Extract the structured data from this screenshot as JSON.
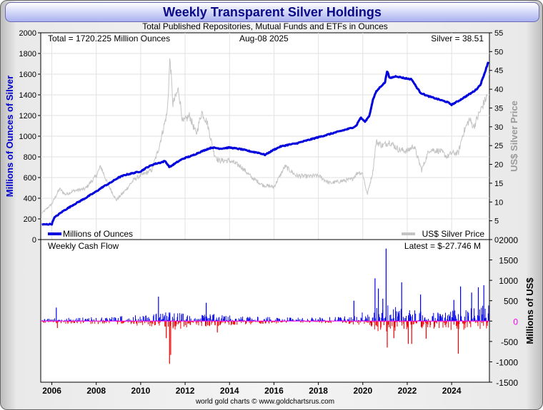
{
  "title": "Weekly Transparent Silver Holdings",
  "subtitle": "Total Published Repositories, Mutual Funds and ETFs in Ounces",
  "footer": "world gold charts © www.goldchartsrus.com",
  "colors": {
    "holdings": "#0000dd",
    "silver_price": "#c4c4c4",
    "inflow": "#0000ee",
    "outflow": "#ee0000",
    "zero_line": "#ff00ff",
    "grid": "#e2e2e2",
    "title_text": "#0a0a86",
    "left_axis_label": "#0000cc",
    "right_axis_label": "#9a9a9a"
  },
  "chart_data": [
    {
      "type": "line",
      "name": "holdings-panel",
      "info_total": "Total = 1720.225 Million Ounces",
      "info_date": "Aug-08  2025",
      "info_silver": "Silver = 38.51",
      "ylabel": "Millions of Ounces of Silver",
      "y2label": "US$ Silver Price",
      "ylim": [
        0,
        2000
      ],
      "y2lim": [
        0,
        55
      ],
      "xlim": [
        2005.5,
        2025.7
      ],
      "yticks": [
        "0",
        "200",
        "400",
        "600",
        "800",
        "1000",
        "1200",
        "1400",
        "1600",
        "1800",
        "2000"
      ],
      "y2ticks": [
        "0",
        "5",
        "10",
        "15",
        "20",
        "25",
        "30",
        "35",
        "40",
        "45",
        "50",
        "55"
      ],
      "legend_holdings": "Millions of Ounces",
      "legend_price": "US$ Silver Price",
      "series": [
        {
          "name": "Millions of Ounces",
          "axis": "left",
          "x": [
            2005.55,
            2006.0,
            2006.1,
            2006.5,
            2007.0,
            2007.5,
            2008.0,
            2008.3,
            2008.6,
            2009.0,
            2009.3,
            2009.6,
            2010.0,
            2010.3,
            2010.6,
            2010.9,
            2011.1,
            2011.3,
            2011.5,
            2011.8,
            2012.0,
            2012.3,
            2012.6,
            2013.0,
            2013.2,
            2013.6,
            2014.0,
            2014.5,
            2015.0,
            2015.3,
            2015.6,
            2016.0,
            2016.3,
            2016.6,
            2017.0,
            2017.5,
            2018.0,
            2018.5,
            2019.0,
            2019.5,
            2019.7,
            2019.9,
            2020.1,
            2020.3,
            2020.45,
            2020.6,
            2020.8,
            2021.0,
            2021.1,
            2021.2,
            2021.5,
            2021.9,
            2022.2,
            2022.4,
            2022.6,
            2022.9,
            2023.2,
            2023.5,
            2023.8,
            2024.0,
            2024.3,
            2024.6,
            2024.9,
            2025.1,
            2025.3,
            2025.5,
            2025.65
          ],
          "values": [
            145,
            150,
            210,
            275,
            340,
            400,
            465,
            510,
            545,
            600,
            625,
            640,
            660,
            700,
            730,
            745,
            760,
            700,
            730,
            770,
            790,
            810,
            840,
            875,
            890,
            880,
            890,
            875,
            850,
            840,
            820,
            870,
            900,
            915,
            930,
            960,
            990,
            1020,
            1050,
            1080,
            1100,
            1180,
            1140,
            1200,
            1350,
            1430,
            1480,
            1520,
            1640,
            1560,
            1580,
            1560,
            1550,
            1480,
            1420,
            1390,
            1370,
            1350,
            1330,
            1305,
            1340,
            1380,
            1420,
            1450,
            1500,
            1620,
            1720
          ]
        },
        {
          "name": "US$ Silver Price",
          "axis": "right",
          "x": [
            2005.55,
            2006.0,
            2006.35,
            2006.6,
            2007.0,
            2007.5,
            2008.0,
            2008.2,
            2008.5,
            2008.9,
            2009.3,
            2009.7,
            2010.0,
            2010.5,
            2010.8,
            2011.0,
            2011.2,
            2011.32,
            2011.45,
            2011.7,
            2011.9,
            2012.2,
            2012.5,
            2012.75,
            2013.0,
            2013.3,
            2013.5,
            2014.0,
            2014.5,
            2015.0,
            2015.5,
            2016.0,
            2016.5,
            2017.0,
            2017.5,
            2018.0,
            2018.5,
            2019.0,
            2019.5,
            2019.8,
            2020.0,
            2020.2,
            2020.45,
            2020.6,
            2020.9,
            2021.2,
            2021.6,
            2022.0,
            2022.3,
            2022.65,
            2023.0,
            2023.5,
            2023.8,
            2024.0,
            2024.3,
            2024.5,
            2024.8,
            2025.0,
            2025.2,
            2025.5,
            2025.62
          ],
          "values": [
            7,
            9.5,
            13.5,
            12,
            13,
            13.5,
            17,
            19.5,
            15,
            10.5,
            13,
            16,
            17,
            18.5,
            24,
            29,
            34,
            48.5,
            36,
            40,
            31,
            33,
            28,
            34,
            31,
            23,
            21,
            21,
            19.5,
            16.5,
            14.5,
            14,
            19.5,
            17,
            16.8,
            17,
            15,
            15.5,
            16,
            18,
            17.5,
            12,
            18,
            26,
            25,
            26,
            24,
            23.5,
            25,
            18.5,
            24,
            23.5,
            22,
            23,
            23,
            28,
            32,
            30,
            33,
            37,
            38.5
          ]
        }
      ]
    },
    {
      "type": "bar",
      "name": "cashflow-panel",
      "title": "Weekly Cash Flow",
      "latest": "Latest = $-27.746 M",
      "ylabel": "Millions of US$",
      "ylim": [
        -1500,
        2000
      ],
      "yticks": [
        "-1500",
        "-1000",
        "-500",
        "0",
        "500",
        "1000",
        "1500",
        "2000"
      ],
      "xlabels": [
        "2006",
        "2008",
        "2010",
        "2012",
        "2014",
        "2016",
        "2018",
        "2020",
        "2022",
        "2024"
      ],
      "xticks": [
        2006,
        2008,
        2010,
        2012,
        2014,
        2016,
        2018,
        2020,
        2022,
        2024
      ],
      "activity_envelope": {
        "x": [
          2005.5,
          2006.4,
          2007.5,
          2009.0,
          2010.7,
          2011.5,
          2012.5,
          2013.3,
          2014.5,
          2016.0,
          2017.5,
          2019.0,
          2019.5,
          2020.1,
          2021.0,
          2021.5,
          2022.5,
          2023.5,
          2024.5,
          2025.0,
          2025.7
        ],
        "pos": [
          40,
          90,
          90,
          120,
          200,
          230,
          140,
          180,
          120,
          100,
          80,
          120,
          120,
          260,
          420,
          380,
          240,
          220,
          300,
          350,
          420
        ],
        "neg": [
          -40,
          -70,
          -70,
          -80,
          -150,
          -230,
          -120,
          -140,
          -90,
          -60,
          -50,
          -60,
          -80,
          -150,
          -300,
          -250,
          -180,
          -200,
          -240,
          -230,
          -200
        ]
      },
      "notable_flows": [
        {
          "x": 2006.2,
          "value": 330
        },
        {
          "x": 2006.25,
          "value": -170
        },
        {
          "x": 2010.8,
          "value": 600
        },
        {
          "x": 2011.15,
          "value": -420
        },
        {
          "x": 2011.3,
          "value": -1050
        },
        {
          "x": 2011.35,
          "value": -830
        },
        {
          "x": 2012.95,
          "value": 450
        },
        {
          "x": 2013.45,
          "value": -280
        },
        {
          "x": 2019.6,
          "value": 500
        },
        {
          "x": 2020.55,
          "value": 1050
        },
        {
          "x": 2020.7,
          "value": 800
        },
        {
          "x": 2020.9,
          "value": 550
        },
        {
          "x": 2021.05,
          "value": 1780
        },
        {
          "x": 2021.1,
          "value": -650
        },
        {
          "x": 2021.4,
          "value": -420
        },
        {
          "x": 2021.75,
          "value": 950
        },
        {
          "x": 2022.05,
          "value": -560
        },
        {
          "x": 2022.2,
          "value": -560
        },
        {
          "x": 2022.6,
          "value": 650
        },
        {
          "x": 2022.85,
          "value": -430
        },
        {
          "x": 2024.1,
          "value": 520
        },
        {
          "x": 2024.3,
          "value": -800
        },
        {
          "x": 2024.4,
          "value": 850
        },
        {
          "x": 2024.9,
          "value": 700
        },
        {
          "x": 2025.2,
          "value": 830
        },
        {
          "x": 2025.45,
          "value": 880
        },
        {
          "x": 2025.62,
          "value": -28
        }
      ]
    }
  ]
}
